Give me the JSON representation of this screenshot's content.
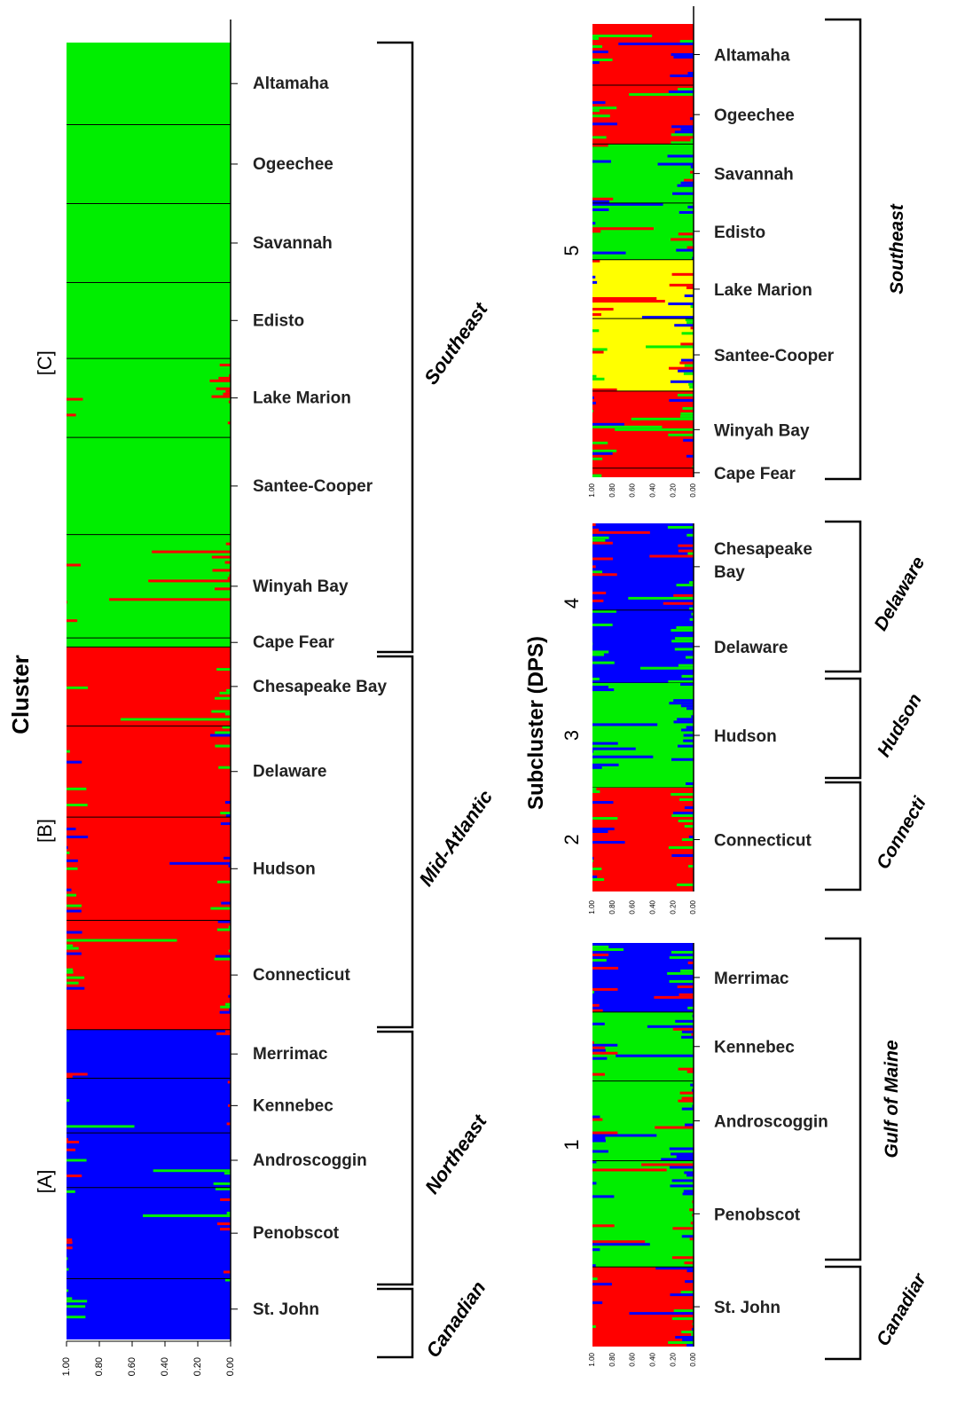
{
  "colors": {
    "red": "#ff0000",
    "green": "#00ee00",
    "blue": "#0000ff",
    "yellow": "#ffff00",
    "axis": "#000000"
  },
  "chart_data": [
    {
      "type": "bar",
      "orientation": "horizontal-stacked",
      "ylabel": "Cluster",
      "x_ticks": [
        "1.00",
        "0.80",
        "0.60",
        "0.40",
        "0.20",
        "0.00"
      ],
      "xlim": [
        0,
        1
      ],
      "populations": [
        {
          "name": "Altamaha",
          "span": 0.135,
          "main": "green",
          "noise": []
        },
        {
          "name": "Ogeechee",
          "span": 0.13,
          "main": "green",
          "noise": []
        },
        {
          "name": "Savannah",
          "span": 0.13,
          "main": "green",
          "noise": []
        },
        {
          "name": "Edisto",
          "span": 0.125,
          "main": "green",
          "noise": []
        },
        {
          "name": "Lake Marion",
          "span": 0.13,
          "main": "green",
          "noise": [
            "red"
          ]
        },
        {
          "name": "Santee-Cooper",
          "span": 0.16,
          "main": "green",
          "noise": []
        },
        {
          "name": "Winyah Bay",
          "span": 0.17,
          "main": "green",
          "noise": [
            "red"
          ]
        },
        {
          "name": "Cape Fear",
          "span": 0.015,
          "main": "green",
          "noise": []
        },
        {
          "name": "Chesapeake Bay",
          "span": 0.13,
          "main": "red",
          "noise": [
            "green"
          ]
        },
        {
          "name": "Delaware",
          "span": 0.15,
          "main": "red",
          "noise": [
            "green",
            "blue"
          ]
        },
        {
          "name": "Hudson",
          "span": 0.17,
          "main": "red",
          "noise": [
            "blue",
            "green"
          ]
        },
        {
          "name": "Connecticut",
          "span": 0.18,
          "main": "red",
          "noise": [
            "green",
            "blue"
          ]
        },
        {
          "name": "Merrimac",
          "span": 0.08,
          "main": "blue",
          "noise": [
            "red"
          ]
        },
        {
          "name": "Kennebec",
          "span": 0.09,
          "main": "blue",
          "noise": [
            "red",
            "green"
          ]
        },
        {
          "name": "Androscoggin",
          "span": 0.09,
          "main": "blue",
          "noise": [
            "red",
            "green"
          ]
        },
        {
          "name": "Penobscot",
          "span": 0.15,
          "main": "blue",
          "noise": [
            "red",
            "green"
          ]
        },
        {
          "name": "St. John",
          "span": 0.1,
          "main": "blue",
          "noise": [
            "green"
          ]
        }
      ],
      "cluster_labels": [
        {
          "label": "[C]",
          "populations": [
            "Altamaha",
            "Cape Fear"
          ]
        },
        {
          "label": "[B]",
          "populations": [
            "Chesapeake Bay",
            "Connecticut"
          ]
        },
        {
          "label": "[A]",
          "populations": [
            "Merrimac",
            "St. John"
          ]
        }
      ],
      "groups": [
        {
          "name": "Southeast",
          "from": "Altamaha",
          "to": "Cape Fear"
        },
        {
          "name": "Mid-Atlantic",
          "from": "Chesapeake Bay",
          "to": "Connecticut"
        },
        {
          "name": "Northeast",
          "from": "Merrimac",
          "to": "Penobscot"
        },
        {
          "name": "Canadian",
          "from": "St. John",
          "to": "St. John"
        }
      ]
    },
    {
      "type": "bar",
      "orientation": "horizontal-stacked",
      "ylabel": "Subcluster (DPS)",
      "x_ticks": [
        "1.00",
        "0.80",
        "0.60",
        "0.40",
        "0.20",
        "0.00"
      ],
      "xlim": [
        0,
        1
      ],
      "panels": [
        {
          "subcluster": "5",
          "populations": [
            {
              "name": "Altamaha",
              "span": 0.135,
              "main": "red",
              "noise": [
                "green",
                "blue"
              ]
            },
            {
              "name": "Ogeechee",
              "span": 0.13,
              "main": "red",
              "noise": [
                "green",
                "blue"
              ]
            },
            {
              "name": "Savannah",
              "span": 0.13,
              "main": "green",
              "noise": [
                "red",
                "blue"
              ]
            },
            {
              "name": "Edisto",
              "span": 0.125,
              "main": "green",
              "noise": [
                "red",
                "blue"
              ]
            },
            {
              "name": "Lake Marion",
              "span": 0.13,
              "main": "yellow",
              "noise": [
                "red",
                "green",
                "blue"
              ]
            },
            {
              "name": "Santee-Cooper",
              "span": 0.16,
              "main": "yellow",
              "noise": [
                "red",
                "green",
                "blue"
              ]
            },
            {
              "name": "Winyah Bay",
              "span": 0.17,
              "main": "red",
              "noise": [
                "green",
                "blue"
              ]
            },
            {
              "name": "Cape Fear",
              "span": 0.02,
              "main": "red",
              "noise": [
                "green",
                "blue"
              ]
            }
          ],
          "groups": [
            {
              "name": "Southeast",
              "from": "Altamaha",
              "to": "Cape Fear"
            }
          ]
        },
        {
          "subcluster": "4",
          "populations": [
            {
              "name": "Chesapeake Bay",
              "span": 0.19,
              "main": "blue",
              "noise": [
                "green",
                "red"
              ]
            },
            {
              "name": "Delaware",
              "span": 0.16,
              "main": "blue",
              "noise": [
                "green"
              ]
            }
          ],
          "groups": [
            {
              "name": "Delaware",
              "from": "Chesapeake Bay",
              "to": "Delaware"
            }
          ]
        },
        {
          "subcluster": "3",
          "populations": [
            {
              "name": "Hudson",
              "span": 0.26,
              "main": "green",
              "noise": [
                "blue"
              ]
            }
          ],
          "groups": [
            {
              "name": "Hudson",
              "from": "Hudson",
              "to": "Hudson"
            }
          ]
        },
        {
          "subcluster": "2",
          "populations": [
            {
              "name": "Connecticut",
              "span": 0.26,
              "main": "red",
              "noise": [
                "green",
                "blue"
              ]
            }
          ],
          "groups": [
            {
              "name": "Connecti",
              "from": "Connecticut",
              "to": "Connecticut"
            }
          ]
        },
        {
          "subcluster": "1",
          "populations": [
            {
              "name": "Merrimac",
              "span": 0.13,
              "main": "blue",
              "noise": [
                "green",
                "red"
              ]
            },
            {
              "name": "Kennebec",
              "span": 0.13,
              "main": "green",
              "noise": [
                "red",
                "blue"
              ]
            },
            {
              "name": "Androscoggin",
              "span": 0.15,
              "main": "green",
              "noise": [
                "red",
                "blue"
              ]
            },
            {
              "name": "Penobscot",
              "span": 0.2,
              "main": "green",
              "noise": [
                "red",
                "blue"
              ]
            },
            {
              "name": "St. John",
              "span": 0.15,
              "main": "red",
              "noise": [
                "blue",
                "green"
              ]
            }
          ],
          "groups": [
            {
              "name": "Gulf of Maine",
              "from": "Merrimac",
              "to": "Penobscot"
            },
            {
              "name": "Canadiar",
              "from": "St. John",
              "to": "St. John"
            }
          ]
        }
      ]
    }
  ]
}
